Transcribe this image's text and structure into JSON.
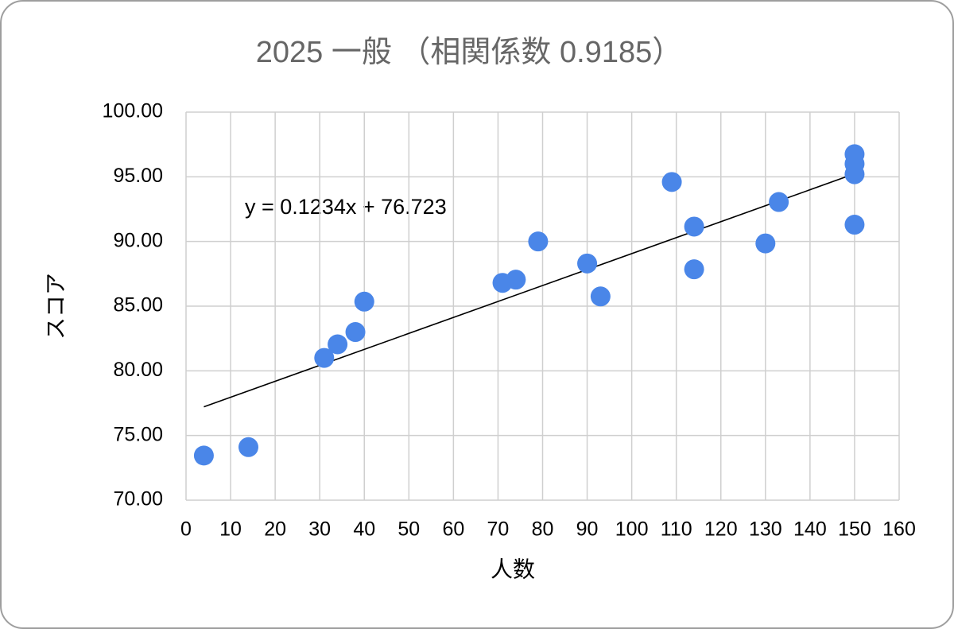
{
  "chart_data": {
    "type": "scatter",
    "title": "2025 一般 （相関係数 0.9185）",
    "x_label": "人数",
    "y_label": "スコア",
    "x": [
      4,
      14,
      31,
      34,
      38,
      40,
      71,
      74,
      79,
      90,
      93,
      109,
      114,
      114,
      130,
      133,
      150,
      150,
      150,
      150
    ],
    "values": [
      73.45,
      74.1,
      81.0,
      82.05,
      83.0,
      85.35,
      86.8,
      87.05,
      90.0,
      88.3,
      85.75,
      94.6,
      91.15,
      87.85,
      89.85,
      93.05,
      96.75,
      96.0,
      95.2,
      91.3
    ],
    "color": "#4a86e8",
    "trendline": {
      "label": "y = 0.1234x + 76.723",
      "slope": 0.1234,
      "intercept": 76.723
    },
    "xlim": [
      0,
      160
    ],
    "xticks": [
      0,
      10,
      20,
      30,
      40,
      50,
      60,
      70,
      80,
      90,
      100,
      110,
      120,
      130,
      140,
      150,
      160
    ],
    "ylim": [
      70,
      100
    ],
    "yticks": [
      {
        "value": 70,
        "label": "70.00"
      },
      {
        "value": 75,
        "label": "75.00"
      },
      {
        "value": 80,
        "label": "80.00"
      },
      {
        "value": 85,
        "label": "85.00"
      },
      {
        "value": 90,
        "label": "90.00"
      },
      {
        "value": 95,
        "label": "95.00"
      },
      {
        "value": 100,
        "label": "100.00"
      }
    ],
    "grid": true
  }
}
